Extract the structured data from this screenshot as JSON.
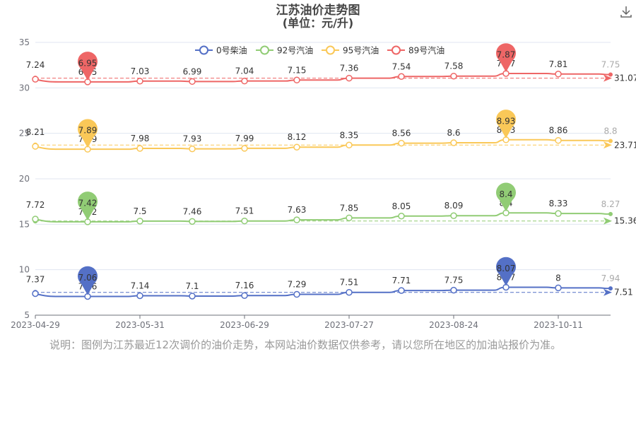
{
  "chart_data": {
    "type": "line",
    "title": "江苏油价走势图",
    "subtitle": "(单位：元/升)",
    "ylim": [
      5,
      35
    ],
    "yticks": [
      5,
      10,
      15,
      20,
      25,
      30,
      35
    ],
    "x": [
      "2023-04-29",
      "2023-05-15",
      "2023-05-31",
      "2023-06-15",
      "2023-06-29",
      "2023-07-13",
      "2023-07-27",
      "2023-08-10",
      "2023-08-24",
      "2023-09-07",
      "2023-10-11",
      "2023-10-24"
    ],
    "x_ticks": [
      "2023-04-29",
      "2023-05-31",
      "2023-06-29",
      "2023-07-27",
      "2023-08-24",
      "2023-10-11"
    ],
    "grid": "horizontal",
    "legend_position": "top",
    "series": [
      {
        "name": "0号柴油",
        "color": "#5470c6",
        "offset": 0,
        "values": [
          7.37,
          7.06,
          7.14,
          7.1,
          7.16,
          7.29,
          7.51,
          7.71,
          7.75,
          8.07,
          8,
          7.94
        ],
        "point_labels": [
          "7.37",
          "7.06",
          "7.14",
          "7.1",
          "7.16",
          "7.29",
          "7.51",
          "7.71",
          "7.75",
          "8.07",
          "8",
          "7.94"
        ],
        "min_label": "7.06",
        "max_label": "8.07",
        "average": 7.51,
        "average_label": "7.51"
      },
      {
        "name": "92号汽油",
        "color": "#91cc75",
        "offset": 7.85,
        "values": [
          7.72,
          7.42,
          7.5,
          7.46,
          7.51,
          7.63,
          7.85,
          8.05,
          8.09,
          8.4,
          8.33,
          8.27
        ],
        "point_labels": [
          "7.72",
          "7.42",
          "7.5",
          "7.46",
          "7.51",
          "7.63",
          "7.85",
          "8.05",
          "8.09",
          "8.4",
          "8.33",
          "8.27"
        ],
        "min_label": "7.42",
        "max_label": "8.4",
        "average": 15.36,
        "average_label": "15.36"
      },
      {
        "name": "95号汽油",
        "color": "#fac858",
        "offset": 15.36,
        "values": [
          8.21,
          7.89,
          7.98,
          7.93,
          7.99,
          8.12,
          8.35,
          8.56,
          8.6,
          8.93,
          8.86,
          8.8
        ],
        "point_labels": [
          "8.21",
          "7.89",
          "7.98",
          "7.93",
          "7.99",
          "8.12",
          "8.35",
          "8.56",
          "8.6",
          "8.93",
          "8.86",
          "8.8"
        ],
        "min_label": "7.89",
        "max_label": "8.93",
        "average": 23.71,
        "average_label": "23.71"
      },
      {
        "name": "89号汽油",
        "color": "#ee6666",
        "offset": 23.71,
        "values": [
          7.24,
          6.95,
          7.03,
          6.99,
          7.04,
          7.15,
          7.36,
          7.54,
          7.58,
          7.87,
          7.81,
          7.75
        ],
        "point_labels": [
          "7.24",
          "6.95",
          "7.03",
          "6.99",
          "7.04",
          "7.15",
          "7.36",
          "7.54",
          "7.58",
          "7.87",
          "7.81",
          "7.75"
        ],
        "min_label": "6.95",
        "max_label": "7.87",
        "average": 31.07,
        "average_label": "31.07"
      }
    ]
  },
  "note": "说明：图例为江苏最近12次调价的油价走势，本网站油价数据仅供参考，请以您所在地区的加油站报价为准。",
  "toolbar": {
    "icon": "download-icon"
  }
}
